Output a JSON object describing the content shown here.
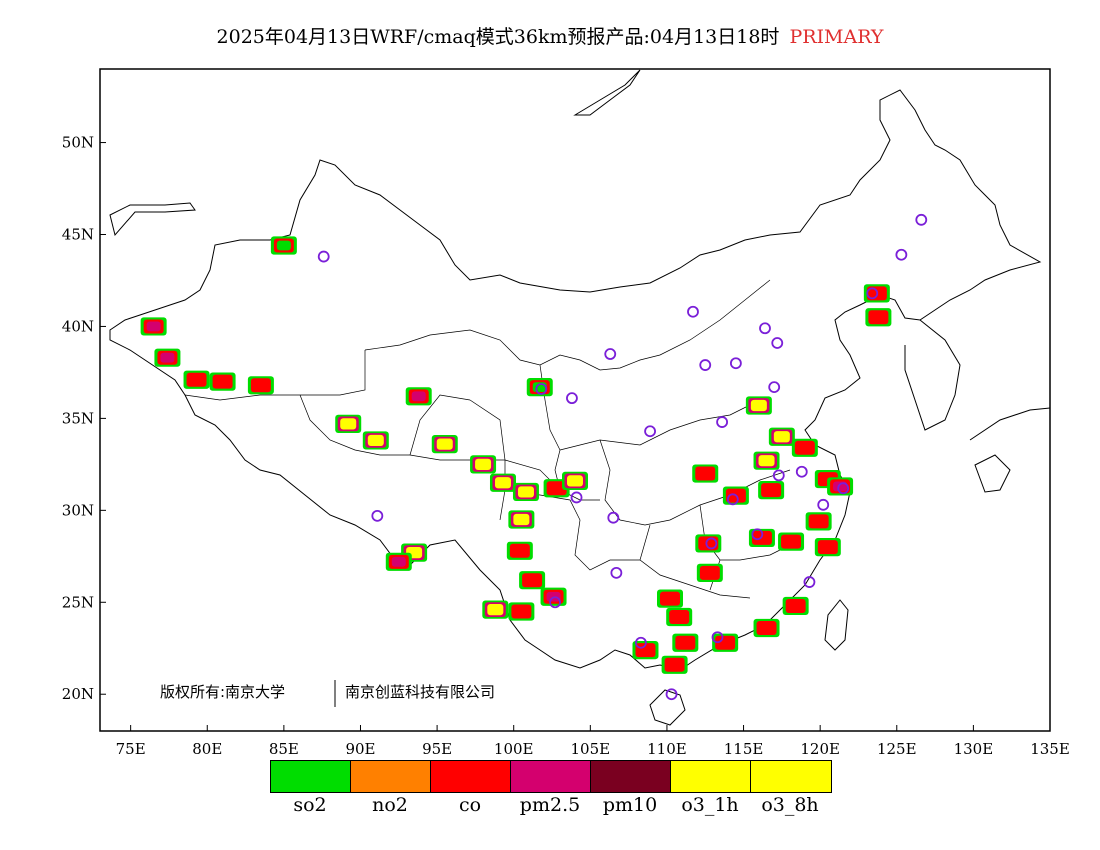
{
  "header": {
    "title": "2025年04月13日WRF/cmaq模式36km预报产品:04月13日18时",
    "badge": "PRIMARY",
    "badge_color": "#e03030"
  },
  "map": {
    "lon_range": [
      73,
      135
    ],
    "lat_range": [
      18,
      54
    ],
    "lon_ticks": [
      "75E",
      "80E",
      "85E",
      "90E",
      "95E",
      "100E",
      "105E",
      "110E",
      "115E",
      "120E",
      "125E",
      "130E",
      "135E"
    ],
    "lat_ticks": [
      "20N",
      "25N",
      "30N",
      "35N",
      "40N",
      "45N",
      "50N"
    ],
    "copyright_left": "版权所有:南京大学",
    "copyright_right": "南京创蓝科技有限公司"
  },
  "legend": [
    {
      "label": "so2",
      "color": "#00dd00"
    },
    {
      "label": "no2",
      "color": "#ff8000"
    },
    {
      "label": "co",
      "color": "#ff0000"
    },
    {
      "label": "pm2.5",
      "color": "#d4006e"
    },
    {
      "label": "pm10",
      "color": "#7a0020"
    },
    {
      "label": "o3_1h",
      "color": "#ffff00"
    },
    {
      "label": "o3_8h",
      "color": "#ffff00"
    }
  ],
  "pollution_areas": [
    {
      "lon": 76.5,
      "lat": 40.0,
      "type": "pm2.5"
    },
    {
      "lon": 77.4,
      "lat": 38.3,
      "type": "pm2.5"
    },
    {
      "lon": 79.3,
      "lat": 37.1,
      "type": "co"
    },
    {
      "lon": 81.0,
      "lat": 37.0,
      "type": "co"
    },
    {
      "lon": 83.5,
      "lat": 36.8,
      "type": "co"
    },
    {
      "lon": 85.0,
      "lat": 44.4,
      "type": "so2"
    },
    {
      "lon": 89.2,
      "lat": 34.7,
      "type": "o3_1h"
    },
    {
      "lon": 91.0,
      "lat": 33.8,
      "type": "o3_1h"
    },
    {
      "lon": 93.8,
      "lat": 36.2,
      "type": "pm2.5"
    },
    {
      "lon": 95.5,
      "lat": 33.6,
      "type": "o3_1h"
    },
    {
      "lon": 98.0,
      "lat": 32.5,
      "type": "o3_1h"
    },
    {
      "lon": 99.3,
      "lat": 31.5,
      "type": "o3_1h"
    },
    {
      "lon": 100.8,
      "lat": 31.0,
      "type": "o3_1h"
    },
    {
      "lon": 101.7,
      "lat": 36.7,
      "type": "so2"
    },
    {
      "lon": 93.5,
      "lat": 27.7,
      "type": "o3_1h"
    },
    {
      "lon": 92.5,
      "lat": 27.2,
      "type": "pm2.5"
    },
    {
      "lon": 100.5,
      "lat": 29.5,
      "type": "o3_1h"
    },
    {
      "lon": 100.4,
      "lat": 27.8,
      "type": "co"
    },
    {
      "lon": 101.2,
      "lat": 26.2,
      "type": "co"
    },
    {
      "lon": 102.6,
      "lat": 25.3,
      "type": "pm2.5"
    },
    {
      "lon": 98.8,
      "lat": 24.6,
      "type": "o3_1h"
    },
    {
      "lon": 100.5,
      "lat": 24.5,
      "type": "co"
    },
    {
      "lon": 102.8,
      "lat": 31.2,
      "type": "co"
    },
    {
      "lon": 104.0,
      "lat": 31.6,
      "type": "o3_1h"
    },
    {
      "lon": 116.0,
      "lat": 35.7,
      "type": "o3_1h"
    },
    {
      "lon": 117.5,
      "lat": 34.0,
      "type": "o3_1h"
    },
    {
      "lon": 116.5,
      "lat": 32.7,
      "type": "o3_1h"
    },
    {
      "lon": 119.0,
      "lat": 33.4,
      "type": "co"
    },
    {
      "lon": 114.5,
      "lat": 30.8,
      "type": "co"
    },
    {
      "lon": 116.8,
      "lat": 31.1,
      "type": "co"
    },
    {
      "lon": 120.5,
      "lat": 31.7,
      "type": "co"
    },
    {
      "lon": 119.9,
      "lat": 29.4,
      "type": "co"
    },
    {
      "lon": 112.7,
      "lat": 28.2,
      "type": "co"
    },
    {
      "lon": 116.2,
      "lat": 28.5,
      "type": "co"
    },
    {
      "lon": 118.1,
      "lat": 28.3,
      "type": "co"
    },
    {
      "lon": 120.5,
      "lat": 28.0,
      "type": "co"
    },
    {
      "lon": 110.2,
      "lat": 25.2,
      "type": "co"
    },
    {
      "lon": 110.8,
      "lat": 24.2,
      "type": "co"
    },
    {
      "lon": 112.8,
      "lat": 26.6,
      "type": "co"
    },
    {
      "lon": 108.6,
      "lat": 22.4,
      "type": "co"
    },
    {
      "lon": 111.2,
      "lat": 22.8,
      "type": "co"
    },
    {
      "lon": 113.8,
      "lat": 22.8,
      "type": "co"
    },
    {
      "lon": 116.5,
      "lat": 23.6,
      "type": "co"
    },
    {
      "lon": 118.4,
      "lat": 24.8,
      "type": "co"
    },
    {
      "lon": 110.5,
      "lat": 21.6,
      "type": "co"
    },
    {
      "lon": 123.7,
      "lat": 41.8,
      "type": "co"
    },
    {
      "lon": 123.8,
      "lat": 40.5,
      "type": "co"
    },
    {
      "lon": 112.5,
      "lat": 32.0,
      "type": "co"
    },
    {
      "lon": 121.3,
      "lat": 31.3,
      "type": "pm2.5"
    }
  ],
  "stations": [
    [
      87.6,
      43.8
    ],
    [
      123.4,
      41.8
    ],
    [
      125.3,
      43.9
    ],
    [
      126.6,
      45.8
    ],
    [
      116.4,
      39.9
    ],
    [
      117.2,
      39.1
    ],
    [
      114.5,
      38.0
    ],
    [
      112.5,
      37.9
    ],
    [
      111.7,
      40.8
    ],
    [
      106.3,
      38.5
    ],
    [
      103.8,
      36.1
    ],
    [
      101.8,
      36.6
    ],
    [
      117.0,
      36.7
    ],
    [
      113.6,
      34.8
    ],
    [
      108.9,
      34.3
    ],
    [
      104.1,
      30.7
    ],
    [
      106.5,
      29.6
    ],
    [
      106.7,
      26.6
    ],
    [
      102.7,
      25.0
    ],
    [
      108.3,
      22.8
    ],
    [
      113.3,
      23.1
    ],
    [
      110.3,
      20.0
    ],
    [
      112.9,
      28.2
    ],
    [
      115.9,
      28.7
    ],
    [
      114.3,
      30.6
    ],
    [
      117.3,
      31.9
    ],
    [
      118.8,
      32.1
    ],
    [
      120.2,
      30.3
    ],
    [
      121.5,
      31.2
    ],
    [
      119.3,
      26.1
    ],
    [
      91.1,
      29.7
    ]
  ]
}
